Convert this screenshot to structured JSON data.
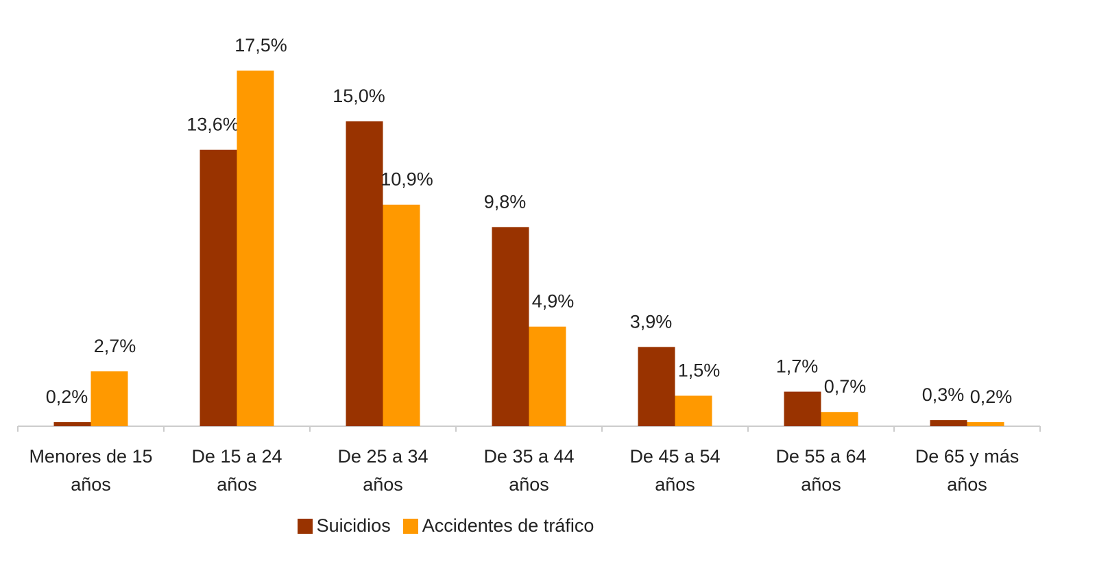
{
  "chart_data": {
    "type": "bar",
    "categories": [
      "Menores de 15 años",
      "De 15 a 24 años",
      "De 25 a 34 años",
      "De 35 a 44 años",
      "De 45 a 54 años",
      "De 55 a 64 años",
      "De 65 y más años"
    ],
    "series": [
      {
        "name": "Suicidios",
        "color": "#993300",
        "values": [
          0.2,
          13.6,
          15.0,
          9.8,
          3.9,
          1.7,
          0.3
        ],
        "value_labels": [
          "0,2%",
          "13,6%",
          "15,0%",
          "9,8%",
          "3,9%",
          "1,7%",
          "0,3%"
        ]
      },
      {
        "name": "Accidentes de tráfico",
        "color": "#ff9900",
        "values": [
          2.7,
          17.5,
          10.9,
          4.9,
          1.5,
          0.7,
          0.2
        ],
        "value_labels": [
          "2,7%",
          "17,5%",
          "10,9%",
          "4,9%",
          "1,5%",
          "0,7%",
          "0,2%"
        ]
      }
    ],
    "legend": "bottom"
  }
}
